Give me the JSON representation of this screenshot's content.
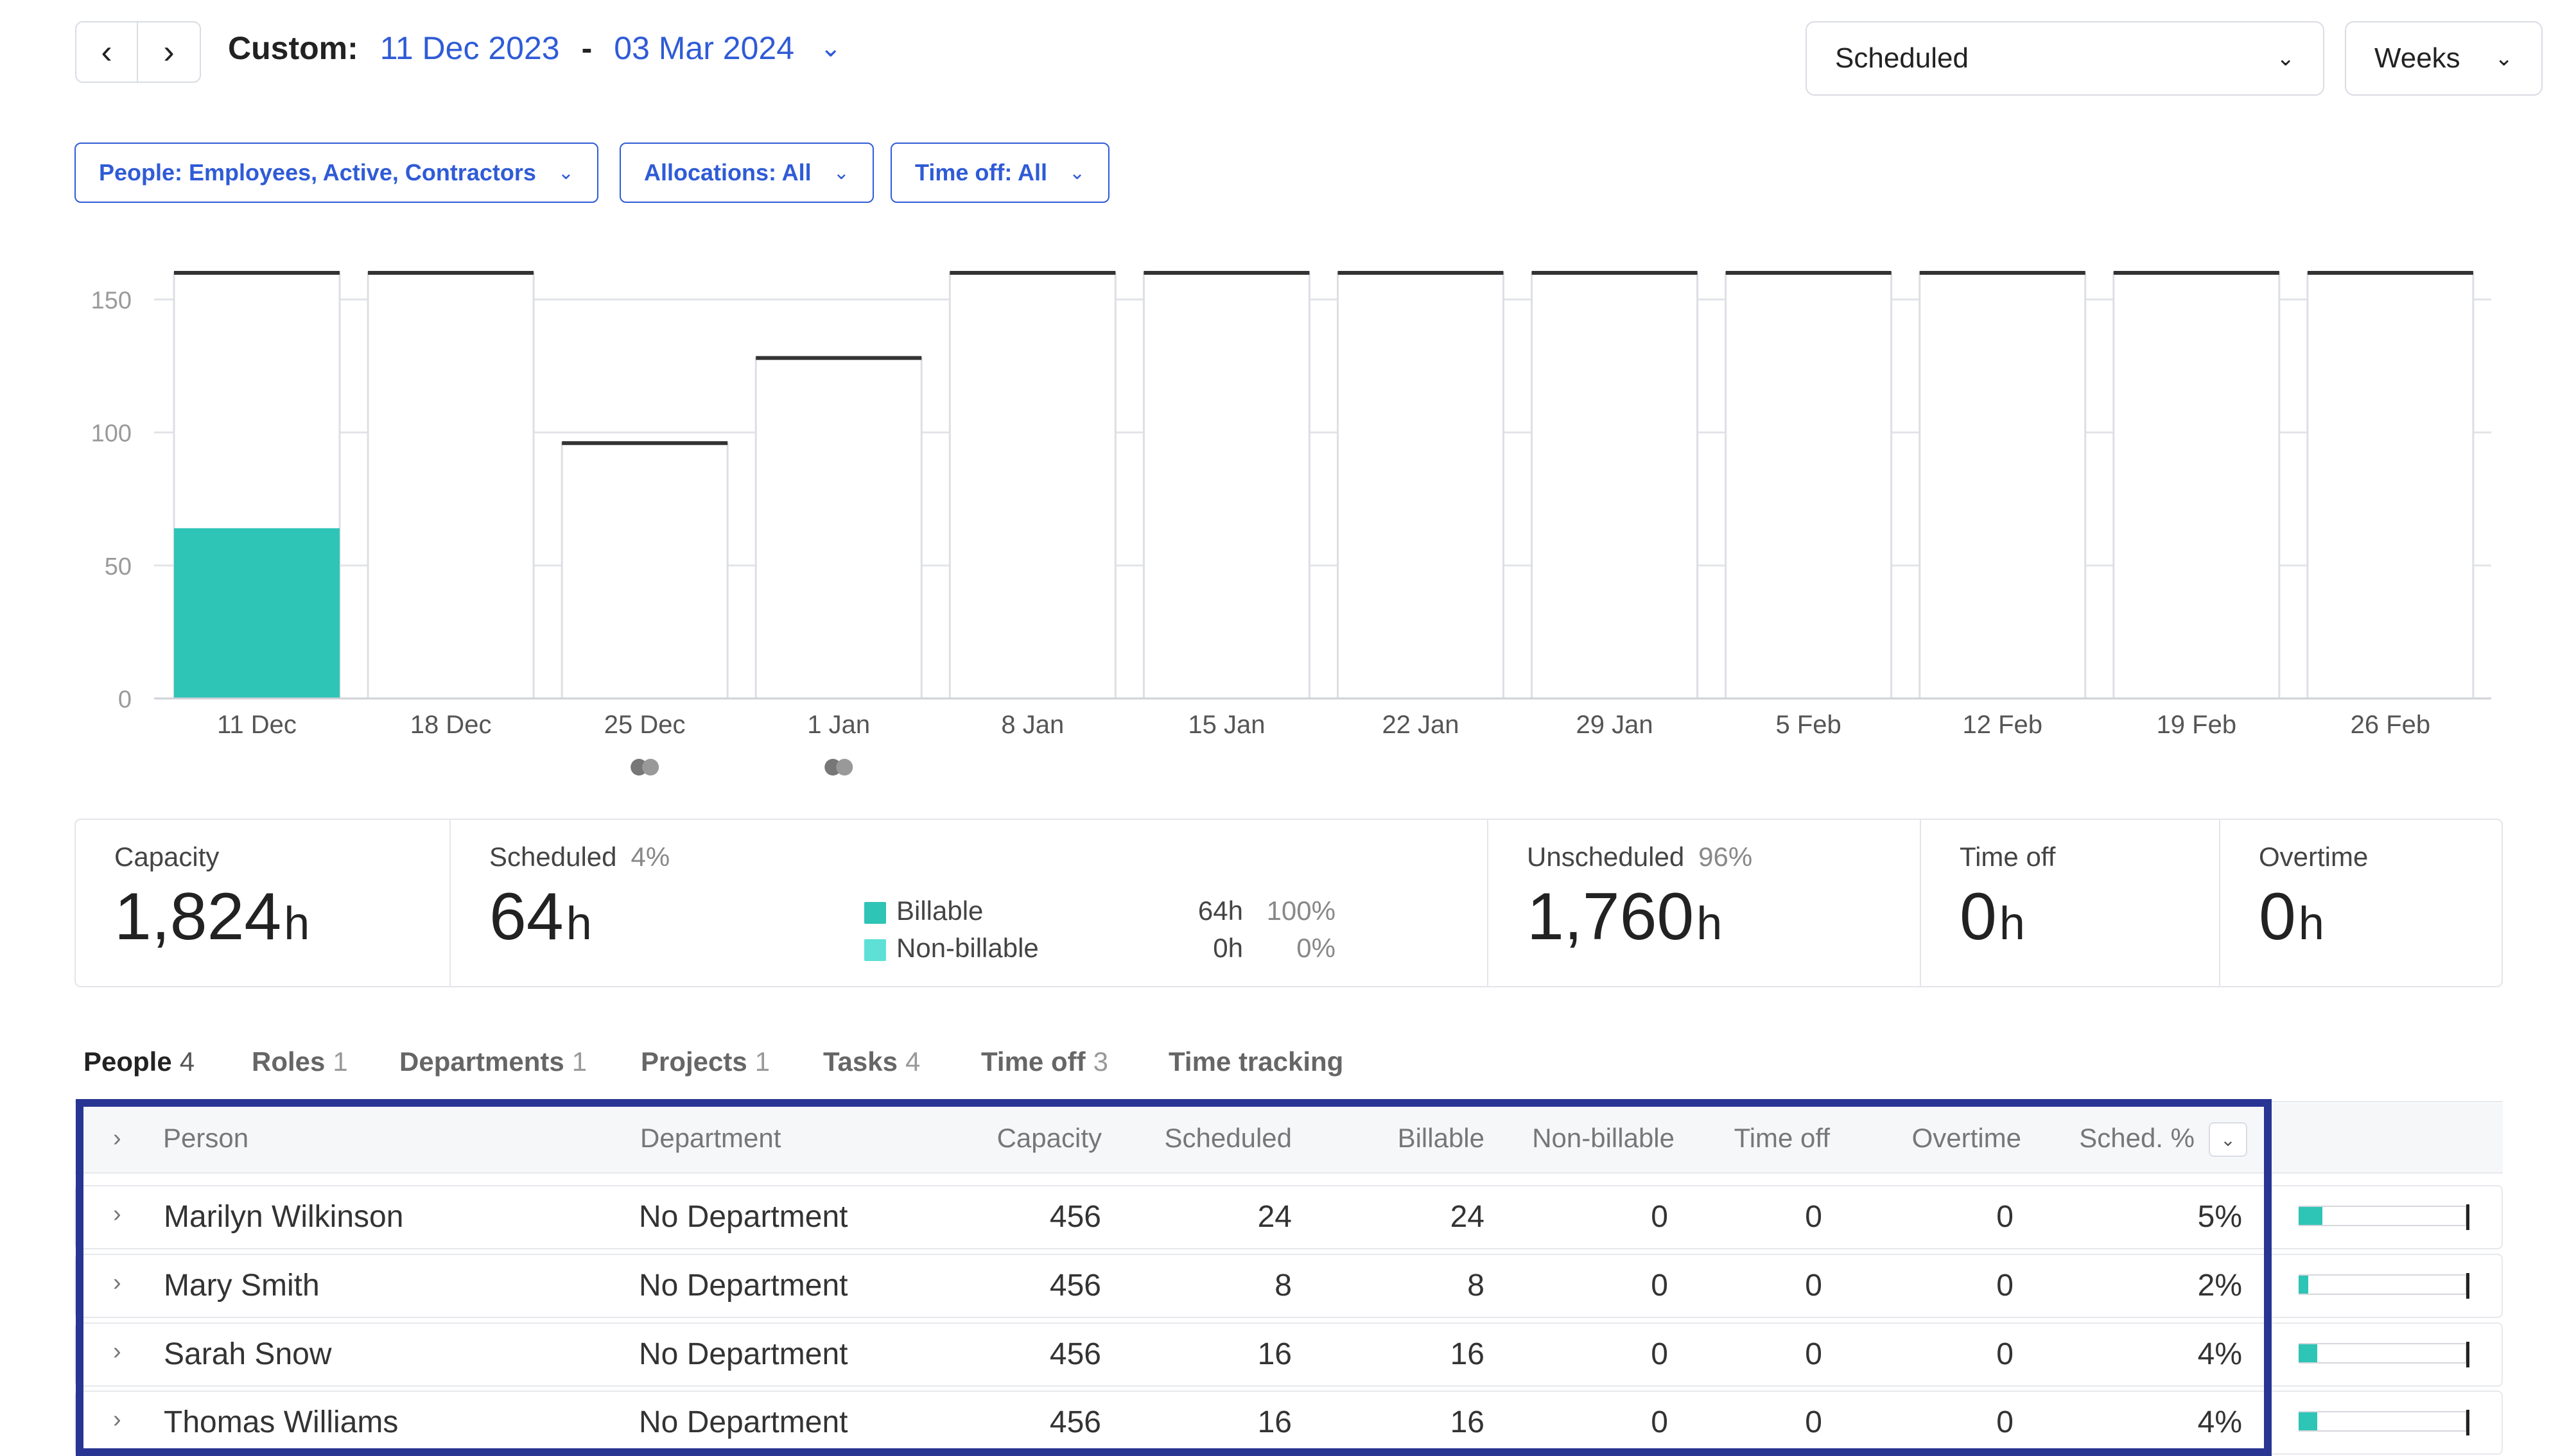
{
  "header": {
    "prev_icon": "chevron-left-icon",
    "next_icon": "chevron-right-icon",
    "range_label": "Custom:",
    "range_start": "11 Dec 2023",
    "range_sep": "-",
    "range_end": "03 Mar 2024",
    "view_mode": "Scheduled",
    "interval": "Weeks"
  },
  "filters": [
    {
      "label": "People: Employees, Active, Contractors"
    },
    {
      "label": "Allocations: All"
    },
    {
      "label": "Time off: All"
    }
  ],
  "chart_data": {
    "type": "bar",
    "categories": [
      "11 Dec",
      "18 Dec",
      "25 Dec",
      "1 Jan",
      "8 Jan",
      "15 Jan",
      "22 Jan",
      "29 Jan",
      "5 Feb",
      "12 Feb",
      "19 Feb",
      "26 Feb"
    ],
    "series": [
      {
        "name": "Scheduled",
        "values": [
          64,
          0,
          0,
          0,
          0,
          0,
          0,
          0,
          0,
          0,
          0,
          0
        ],
        "color": "#2ec4b6"
      },
      {
        "name": "Capacity",
        "values": [
          160,
          160,
          96,
          128,
          160,
          160,
          160,
          160,
          160,
          160,
          160,
          160
        ],
        "color": "#333333"
      }
    ],
    "yticks": [
      0,
      50,
      100,
      150
    ],
    "ylim": [
      0,
      160
    ],
    "grid": true,
    "markers_below": [
      "25 Dec",
      "1 Jan"
    ]
  },
  "summary": {
    "capacity": {
      "title": "Capacity",
      "value": "1,824",
      "unit": "h"
    },
    "scheduled": {
      "title": "Scheduled",
      "pct": "4%",
      "value": "64",
      "unit": "h"
    },
    "billable": {
      "label": "Billable",
      "hours": "64h",
      "pct": "100%",
      "color": "#2ec4b6"
    },
    "nonbillable": {
      "label": "Non-billable",
      "hours": "0h",
      "pct": "0%",
      "color": "#5ee0d6"
    },
    "unscheduled": {
      "title": "Unscheduled",
      "pct": "96%",
      "value": "1,760",
      "unit": "h"
    },
    "timeoff": {
      "title": "Time off",
      "value": "0",
      "unit": "h"
    },
    "overtime": {
      "title": "Overtime",
      "value": "0",
      "unit": "h"
    }
  },
  "tabs": [
    {
      "label": "People",
      "count": "4"
    },
    {
      "label": "Roles",
      "count": "1"
    },
    {
      "label": "Departments",
      "count": "1"
    },
    {
      "label": "Projects",
      "count": "1"
    },
    {
      "label": "Tasks",
      "count": "4"
    },
    {
      "label": "Time off",
      "count": "3"
    },
    {
      "label": "Time tracking",
      "count": ""
    }
  ],
  "table": {
    "columns": [
      "Person",
      "Department",
      "Capacity",
      "Scheduled",
      "Billable",
      "Non-billable",
      "Time off",
      "Overtime",
      "Sched. %"
    ],
    "rows": [
      {
        "person": "Marilyn Wilkinson",
        "department": "No Department",
        "capacity": "456",
        "scheduled": "24",
        "billable": "24",
        "nonbillable": "0",
        "timeoff": "0",
        "overtime": "0",
        "sched_pct": "5%",
        "pct_value": 0.05
      },
      {
        "person": "Mary Smith",
        "department": "No Department",
        "capacity": "456",
        "scheduled": "8",
        "billable": "8",
        "nonbillable": "0",
        "timeoff": "0",
        "overtime": "0",
        "sched_pct": "2%",
        "pct_value": 0.02
      },
      {
        "person": "Sarah Snow",
        "department": "No Department",
        "capacity": "456",
        "scheduled": "16",
        "billable": "16",
        "nonbillable": "0",
        "timeoff": "0",
        "overtime": "0",
        "sched_pct": "4%",
        "pct_value": 0.04
      },
      {
        "person": "Thomas Williams",
        "department": "No Department",
        "capacity": "456",
        "scheduled": "16",
        "billable": "16",
        "nonbillable": "0",
        "timeoff": "0",
        "overtime": "0",
        "sched_pct": "4%",
        "pct_value": 0.04
      }
    ]
  }
}
